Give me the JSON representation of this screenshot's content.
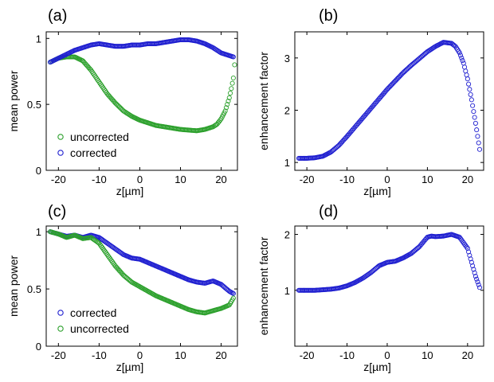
{
  "chart_data": [
    {
      "type": "scatter",
      "panel_label": "(a)",
      "xlabel": "z[µm]",
      "ylabel": "mean power",
      "xlim": [
        -23,
        24
      ],
      "ylim": [
        0,
        1.05
      ],
      "xticks": [
        -20,
        -10,
        0,
        10,
        20
      ],
      "xtick_labels": [
        "-20",
        "-10",
        "0",
        "10",
        "20"
      ],
      "yticks": [
        0,
        0.5,
        1
      ],
      "ytick_labels": [
        "0",
        "0.5",
        "1"
      ],
      "legend_position": "bottom-left",
      "legend": [
        {
          "label": "uncorrected",
          "color": "#2ca02c"
        },
        {
          "label": "corrected",
          "color": "#1f1fd0"
        }
      ],
      "series": [
        {
          "name": "uncorrected",
          "color": "#2ca02c",
          "x": [
            -22,
            -20,
            -18,
            -16,
            -14,
            -12,
            -10,
            -8,
            -6,
            -4,
            -2,
            0,
            2,
            4,
            6,
            8,
            10,
            12,
            14,
            16,
            18,
            19,
            20,
            21,
            22,
            22.5,
            23,
            23.3
          ],
          "y": [
            0.82,
            0.85,
            0.86,
            0.86,
            0.83,
            0.76,
            0.67,
            0.58,
            0.51,
            0.45,
            0.41,
            0.38,
            0.36,
            0.34,
            0.33,
            0.32,
            0.31,
            0.305,
            0.3,
            0.31,
            0.33,
            0.35,
            0.39,
            0.45,
            0.55,
            0.62,
            0.7,
            0.8
          ]
        },
        {
          "name": "corrected",
          "color": "#1f1fd0",
          "x": [
            -22,
            -20,
            -18,
            -16,
            -14,
            -12,
            -10,
            -8,
            -6,
            -4,
            -2,
            0,
            2,
            4,
            6,
            8,
            10,
            12,
            14,
            16,
            18,
            20,
            22,
            23
          ],
          "y": [
            0.82,
            0.85,
            0.88,
            0.91,
            0.93,
            0.95,
            0.96,
            0.95,
            0.94,
            0.94,
            0.95,
            0.95,
            0.96,
            0.96,
            0.97,
            0.98,
            0.99,
            0.99,
            0.98,
            0.96,
            0.93,
            0.89,
            0.87,
            0.86
          ]
        }
      ]
    },
    {
      "type": "scatter",
      "panel_label": "(b)",
      "xlabel": "z[µm]",
      "ylabel": "enhancement factor",
      "xlim": [
        -23,
        24
      ],
      "ylim": [
        0.85,
        3.5
      ],
      "xticks": [
        -20,
        -10,
        0,
        10,
        20
      ],
      "xtick_labels": [
        "-20",
        "-10",
        "0",
        "10",
        "20"
      ],
      "yticks": [
        1,
        2,
        3
      ],
      "ytick_labels": [
        "1",
        "2",
        "3"
      ],
      "series": [
        {
          "name": "",
          "color": "#1f1fd0",
          "x": [
            -22,
            -20,
            -18,
            -16,
            -14,
            -12,
            -10,
            -8,
            -6,
            -4,
            -2,
            0,
            2,
            4,
            6,
            8,
            10,
            12,
            14,
            16,
            17,
            18,
            19,
            20,
            21,
            22,
            23
          ],
          "y": [
            1.08,
            1.08,
            1.09,
            1.12,
            1.2,
            1.33,
            1.5,
            1.68,
            1.86,
            2.04,
            2.22,
            2.4,
            2.56,
            2.72,
            2.86,
            2.99,
            3.12,
            3.22,
            3.3,
            3.28,
            3.22,
            3.1,
            2.9,
            2.6,
            2.2,
            1.75,
            1.25
          ]
        }
      ]
    },
    {
      "type": "scatter",
      "panel_label": "(c)",
      "xlabel": "z[µm]",
      "ylabel": "mean power",
      "xlim": [
        -23,
        24
      ],
      "ylim": [
        0,
        1.05
      ],
      "xticks": [
        -20,
        -10,
        0,
        10,
        20
      ],
      "xtick_labels": [
        "-20",
        "-10",
        "0",
        "10",
        "20"
      ],
      "yticks": [
        0,
        0.5,
        1
      ],
      "ytick_labels": [
        "0",
        "0.5",
        "1"
      ],
      "legend_position": "bottom-left",
      "legend": [
        {
          "label": "corrected",
          "color": "#1f1fd0"
        },
        {
          "label": "uncorrected",
          "color": "#2ca02c"
        }
      ],
      "series": [
        {
          "name": "corrected",
          "color": "#1f1fd0",
          "x": [
            -22,
            -20,
            -18,
            -16,
            -14,
            -12,
            -10,
            -8,
            -6,
            -4,
            -2,
            0,
            2,
            4,
            6,
            8,
            10,
            12,
            14,
            16,
            18,
            20,
            22,
            23
          ],
          "y": [
            1.0,
            0.98,
            0.96,
            0.97,
            0.95,
            0.97,
            0.95,
            0.9,
            0.85,
            0.8,
            0.77,
            0.76,
            0.73,
            0.7,
            0.67,
            0.64,
            0.61,
            0.58,
            0.56,
            0.55,
            0.57,
            0.54,
            0.48,
            0.46
          ]
        },
        {
          "name": "uncorrected",
          "color": "#2ca02c",
          "x": [
            -22,
            -20,
            -18,
            -16,
            -14,
            -12,
            -10,
            -8,
            -6,
            -4,
            -2,
            0,
            2,
            4,
            6,
            8,
            10,
            12,
            14,
            16,
            18,
            20,
            22,
            23
          ],
          "y": [
            1.0,
            0.98,
            0.95,
            0.97,
            0.94,
            0.95,
            0.9,
            0.8,
            0.7,
            0.62,
            0.56,
            0.52,
            0.48,
            0.44,
            0.41,
            0.38,
            0.35,
            0.32,
            0.3,
            0.29,
            0.31,
            0.33,
            0.36,
            0.42
          ]
        }
      ]
    },
    {
      "type": "scatter",
      "panel_label": "(d)",
      "xlabel": "z[µm]",
      "ylabel": "enhancement factor",
      "xlim": [
        -23,
        24
      ],
      "ylim": [
        0,
        2.15
      ],
      "xticks": [
        -20,
        -10,
        0,
        10,
        20
      ],
      "xtick_labels": [
        "-20",
        "-10",
        "0",
        "10",
        "20"
      ],
      "yticks": [
        1,
        2
      ],
      "ytick_labels": [
        "1",
        "2"
      ],
      "series": [
        {
          "name": "",
          "color": "#1f1fd0",
          "x": [
            -22,
            -20,
            -18,
            -16,
            -14,
            -12,
            -10,
            -8,
            -6,
            -4,
            -2,
            0,
            2,
            4,
            6,
            8,
            10,
            11,
            12,
            14,
            16,
            18,
            20,
            21,
            22,
            23
          ],
          "y": [
            1.0,
            1.0,
            1.0,
            1.01,
            1.02,
            1.04,
            1.08,
            1.14,
            1.22,
            1.32,
            1.44,
            1.5,
            1.52,
            1.58,
            1.66,
            1.78,
            1.95,
            1.97,
            1.96,
            1.97,
            2.0,
            1.95,
            1.75,
            1.5,
            1.25,
            1.05
          ]
        }
      ]
    }
  ]
}
